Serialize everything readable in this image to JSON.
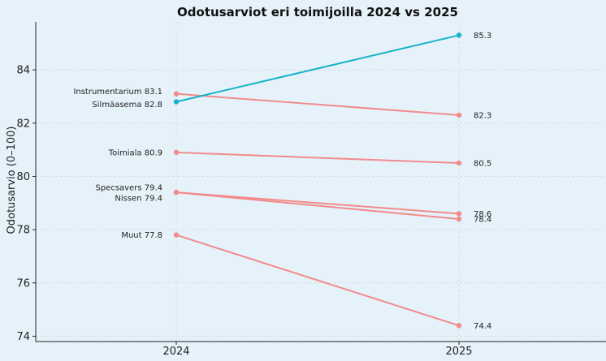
{
  "chart_data": {
    "type": "line",
    "title": "Odotusarviot eri toimijoilla 2024 vs 2025",
    "xlabel": "",
    "ylabel": "Odotusarvio (0–100)",
    "categories": [
      "2024",
      "2025"
    ],
    "ylim": [
      73.8,
      85.8
    ],
    "yticks": [
      74,
      76,
      78,
      80,
      82,
      84
    ],
    "grid": true,
    "series": [
      {
        "name": "Instrumentarium",
        "values": [
          83.1,
          82.3
        ],
        "color": "#f28b8b",
        "left_label": "Instrumentarium 83.1",
        "right_label": "82.3"
      },
      {
        "name": "Silmäasema",
        "values": [
          82.8,
          85.3
        ],
        "color": "#17b3c9",
        "left_label": "Silmäasema 82.8",
        "right_label": "85.3"
      },
      {
        "name": "Toimiala",
        "values": [
          80.9,
          80.5
        ],
        "color": "#f28b8b",
        "left_label": "Toimiala 80.9",
        "right_label": "80.5"
      },
      {
        "name": "Specsavers",
        "values": [
          79.4,
          78.6
        ],
        "color": "#f28b8b",
        "left_label": "Specsavers 79.4",
        "right_label": "78.6"
      },
      {
        "name": "Nissen",
        "values": [
          79.4,
          78.4
        ],
        "color": "#f28b8b",
        "left_label": "Nissen 79.4",
        "right_label": "78.4"
      },
      {
        "name": "Muut",
        "values": [
          77.8,
          74.4
        ],
        "color": "#f28b8b",
        "left_label": "Muut 77.8",
        "right_label": "74.4"
      }
    ]
  }
}
